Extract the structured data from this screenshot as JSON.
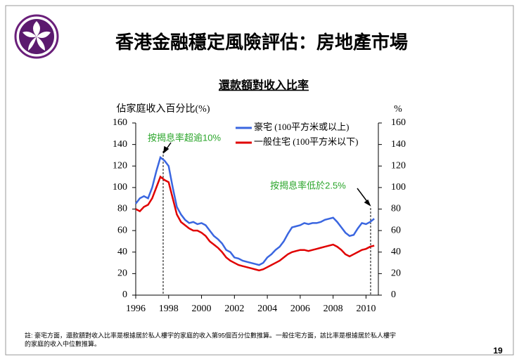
{
  "title": "香港金融穩定風險評估：房地產市場",
  "footnote": [
    "註: 豪宅方面，還款額對收入比率是根據居於私人樓宇的家庭的收入第95個百分位數推算。一般住宅方面，該比率是根據居於私人樓宇",
    "的家庭的收入中位數推算。"
  ],
  "page_number": "19",
  "chart_data": {
    "type": "line",
    "title": "還款額對收入比率",
    "ylabel": "佔家庭收入百分比(%)",
    "y2label": "%",
    "annotations": [
      "按揭息率超逾10%",
      "按揭息率低於2.5%"
    ],
    "x": [
      1996,
      1996.25,
      1996.5,
      1996.75,
      1997,
      1997.25,
      1997.5,
      1997.75,
      1998,
      1998.25,
      1998.5,
      1998.75,
      1999,
      1999.25,
      1999.5,
      1999.75,
      2000,
      2000.25,
      2000.5,
      2000.75,
      2001,
      2001.25,
      2001.5,
      2001.75,
      2002,
      2002.25,
      2002.5,
      2002.75,
      2003,
      2003.25,
      2003.5,
      2003.75,
      2004,
      2004.25,
      2004.5,
      2004.75,
      2005,
      2005.25,
      2005.5,
      2005.75,
      2006,
      2006.25,
      2006.5,
      2006.75,
      2007,
      2007.25,
      2007.5,
      2007.75,
      2008,
      2008.25,
      2008.5,
      2008.75,
      2009,
      2009.25,
      2009.5,
      2009.75,
      2010,
      2010.25,
      2010.5
    ],
    "series": [
      {
        "name": "豪宅 (100平方米或以上)",
        "color": "#3a66e0",
        "values": [
          85,
          90,
          92,
          90,
          100,
          115,
          128,
          125,
          120,
          100,
          82,
          75,
          70,
          67,
          68,
          66,
          67,
          65,
          60,
          55,
          52,
          48,
          42,
          40,
          35,
          34,
          32,
          31,
          30,
          29,
          28,
          30,
          35,
          38,
          42,
          45,
          50,
          57,
          63,
          64,
          65,
          67,
          66,
          67,
          67,
          68,
          70,
          71,
          72,
          68,
          63,
          58,
          55,
          56,
          62,
          67,
          66,
          68,
          71
        ]
      },
      {
        "name": "一般住宅 (100平方米以下)",
        "color": "#e00000",
        "values": [
          80,
          78,
          82,
          84,
          90,
          100,
          110,
          107,
          105,
          90,
          75,
          68,
          65,
          62,
          60,
          60,
          58,
          55,
          50,
          47,
          44,
          40,
          35,
          32,
          30,
          28,
          27,
          26,
          25,
          24,
          23,
          24,
          26,
          28,
          30,
          32,
          35,
          38,
          40,
          41,
          42,
          42,
          41,
          42,
          43,
          44,
          45,
          46,
          47,
          45,
          42,
          38,
          36,
          38,
          40,
          42,
          43,
          45,
          46
        ]
      }
    ],
    "xlim": [
      1996,
      2010.75
    ],
    "xticks": [
      1996,
      1998,
      2000,
      2002,
      2004,
      2006,
      2008,
      2010
    ],
    "ylim": [
      0,
      160
    ],
    "yticks": [
      0,
      20,
      40,
      60,
      80,
      100,
      120,
      140,
      160
    ],
    "y2lim": [
      0,
      160
    ],
    "y2ticks": [
      0,
      20,
      40,
      60,
      80,
      100,
      120,
      140,
      160
    ]
  }
}
